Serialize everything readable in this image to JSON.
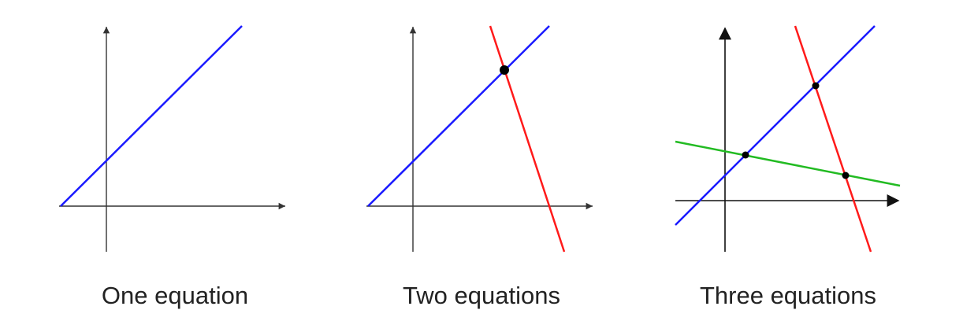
{
  "colors": {
    "axis": "#333333",
    "line_blue": "#1a1aff",
    "line_red": "#ff1a1a",
    "line_green": "#22bb22",
    "point": "#000000"
  },
  "panels": [
    {
      "caption": "One equation",
      "lines": [
        "blue"
      ]
    },
    {
      "caption": "Two equations",
      "lines": [
        "blue",
        "red"
      ]
    },
    {
      "caption": "Three equations",
      "lines": [
        "blue",
        "red",
        "green"
      ]
    }
  ]
}
